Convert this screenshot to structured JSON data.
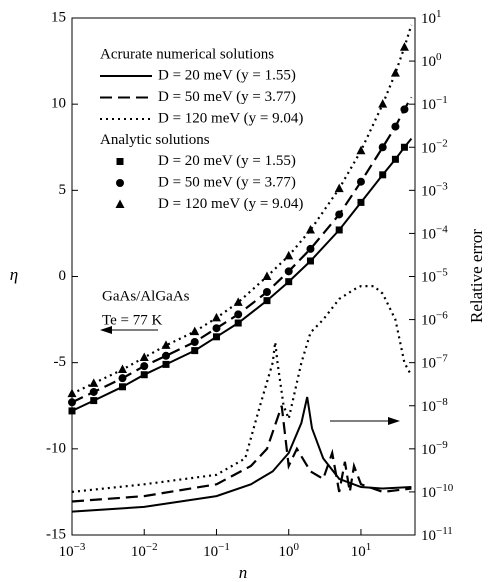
{
  "chart_data": {
    "type": "line",
    "xlabel": "n",
    "ylabel": "η",
    "y2label": "Relative error",
    "xscale": "log",
    "y2scale": "log",
    "xlim": [
      0.001,
      56
    ],
    "ylim": [
      -15,
      15
    ],
    "y2lim": [
      1e-11,
      10
    ],
    "xticks": [
      {
        "value": 0.001,
        "label": "10",
        "exponent": "−3"
      },
      {
        "value": 0.01,
        "label": "10",
        "exponent": "−2"
      },
      {
        "value": 0.1,
        "label": "10",
        "exponent": "−1"
      },
      {
        "value": 1,
        "label": "10",
        "exponent": "0"
      },
      {
        "value": 10,
        "label": "10",
        "exponent": "1"
      }
    ],
    "yticks": [
      -15,
      -10,
      -5,
      0,
      5,
      10,
      15
    ],
    "y2ticks": [
      {
        "value": 10,
        "label": "10",
        "exponent": "1"
      },
      {
        "value": 1,
        "label": "10",
        "exponent": "0"
      },
      {
        "value": 0.1,
        "label": "10",
        "exponent": "−1"
      },
      {
        "value": 0.01,
        "label": "10",
        "exponent": "−2"
      },
      {
        "value": 0.001,
        "label": "10",
        "exponent": "−3"
      },
      {
        "value": 0.0001,
        "label": "10",
        "exponent": "−4"
      },
      {
        "value": 1e-05,
        "label": "10",
        "exponent": "−5"
      },
      {
        "value": 1e-06,
        "label": "10",
        "exponent": "−6"
      },
      {
        "value": 1e-07,
        "label": "10",
        "exponent": "−7"
      },
      {
        "value": 1e-08,
        "label": "10",
        "exponent": "−8"
      },
      {
        "value": 1e-09,
        "label": "10",
        "exponent": "−9"
      },
      {
        "value": 1e-10,
        "label": "10",
        "exponent": "−10"
      },
      {
        "value": 1e-11,
        "label": "10",
        "exponent": "−11"
      }
    ],
    "legend_titles": [
      "Acrurate numerical solutions",
      "Analytic solutions"
    ],
    "annotations": [
      "GaAs/AlGaAs",
      "Te = 77 K"
    ],
    "series": [
      {
        "name": "D = 20 meV (y = 1.55)",
        "style": "solid",
        "color": "#000000",
        "x": [
          0.001,
          0.002,
          0.005,
          0.01,
          0.02,
          0.05,
          0.1,
          0.2,
          0.5,
          1,
          2,
          5,
          10,
          20,
          30,
          40,
          50
        ],
        "values": [
          -7.8,
          -7.2,
          -6.4,
          -5.7,
          -5.1,
          -4.3,
          -3.5,
          -2.7,
          -1.4,
          -0.3,
          0.9,
          2.7,
          4.3,
          5.9,
          6.8,
          7.5,
          8.0
        ]
      },
      {
        "name": "D = 50 meV (y = 3.77)",
        "style": "dashed",
        "color": "#000000",
        "x": [
          0.001,
          0.002,
          0.005,
          0.01,
          0.02,
          0.05,
          0.1,
          0.2,
          0.5,
          1,
          2,
          5,
          10,
          20,
          30,
          40,
          50
        ],
        "values": [
          -7.3,
          -6.7,
          -5.9,
          -5.2,
          -4.6,
          -3.8,
          -3.0,
          -2.2,
          -0.9,
          0.3,
          1.6,
          3.6,
          5.5,
          7.5,
          8.7,
          9.7,
          10.4
        ]
      },
      {
        "name": "D = 120 meV (y = 9.04)",
        "style": "dotted",
        "color": "#000000",
        "x": [
          0.001,
          0.002,
          0.005,
          0.01,
          0.02,
          0.05,
          0.1,
          0.2,
          0.5,
          1,
          2,
          5,
          10,
          20,
          30,
          40,
          50
        ],
        "values": [
          -6.8,
          -6.2,
          -5.4,
          -4.7,
          -4.0,
          -3.2,
          -2.4,
          -1.5,
          0.0,
          1.2,
          2.7,
          5.1,
          7.3,
          10.0,
          11.8,
          13.3,
          14.6
        ]
      },
      {
        "name": "D = 20 meV (y = 1.55)",
        "style": "square",
        "color": "#000000",
        "x": [
          0.001,
          0.002,
          0.005,
          0.01,
          0.02,
          0.05,
          0.1,
          0.2,
          0.5,
          1,
          2,
          5,
          10,
          20,
          30,
          40
        ],
        "values": [
          -7.8,
          -7.2,
          -6.4,
          -5.7,
          -5.1,
          -4.3,
          -3.5,
          -2.7,
          -1.4,
          -0.3,
          0.9,
          2.7,
          4.3,
          5.9,
          6.8,
          7.5
        ]
      },
      {
        "name": "D = 50 meV (y = 3.77)",
        "style": "circle",
        "color": "#000000",
        "x": [
          0.001,
          0.002,
          0.005,
          0.01,
          0.02,
          0.05,
          0.1,
          0.2,
          0.5,
          1,
          2,
          5,
          10,
          20,
          30,
          40
        ],
        "values": [
          -7.3,
          -6.7,
          -5.9,
          -5.2,
          -4.6,
          -3.8,
          -3.0,
          -2.2,
          -0.9,
          0.3,
          1.6,
          3.6,
          5.5,
          7.5,
          8.7,
          9.7
        ]
      },
      {
        "name": "D = 120 meV (y = 9.04)",
        "style": "triangle",
        "color": "#000000",
        "x": [
          0.001,
          0.002,
          0.005,
          0.01,
          0.02,
          0.05,
          0.1,
          0.2,
          0.5,
          1,
          2,
          5,
          10,
          20,
          30,
          40
        ],
        "values": [
          -6.8,
          -6.2,
          -5.4,
          -4.7,
          -4.0,
          -3.2,
          -2.4,
          -1.5,
          0.0,
          1.2,
          2.7,
          5.1,
          7.3,
          10.0,
          11.8,
          13.3
        ]
      },
      {
        "style": "solid",
        "axis": "y2",
        "color": "#000000",
        "x": [
          0.001,
          0.01,
          0.1,
          0.3,
          0.6,
          1,
          1.5,
          1.8,
          2.1,
          3,
          5,
          10,
          20,
          50
        ],
        "values": [
          3.5e-11,
          4.5e-11,
          8e-11,
          1.5e-10,
          3e-10,
          8e-10,
          4e-09,
          1.6e-08,
          3e-09,
          6e-10,
          2e-10,
          1.3e-10,
          1.2e-10,
          1.3e-10
        ]
      },
      {
        "style": "dashed",
        "axis": "y2",
        "color": "#000000",
        "x": [
          0.001,
          0.01,
          0.1,
          0.3,
          0.5,
          0.8,
          1,
          1.3,
          2,
          3,
          4,
          5,
          6,
          7,
          8,
          10,
          20,
          50
        ],
        "values": [
          6e-11,
          8e-11,
          1.5e-10,
          4e-10,
          1e-09,
          1e-08,
          4e-10,
          1e-09,
          3e-10,
          2e-10,
          8e-10,
          1e-10,
          5e-10,
          1e-10,
          4e-10,
          1.5e-10,
          1e-10,
          1.2e-10
        ]
      },
      {
        "style": "dotted",
        "axis": "y2",
        "color": "#000000",
        "x": [
          0.001,
          0.01,
          0.1,
          0.25,
          0.4,
          0.6,
          0.65,
          0.7,
          0.85,
          1,
          1.5,
          2,
          3,
          5,
          8,
          10,
          15,
          20,
          30,
          40,
          50
        ],
        "values": [
          1e-10,
          1.5e-10,
          2.5e-10,
          6e-10,
          1e-08,
          1e-07,
          3e-07,
          1e-07,
          1e-08,
          5e-09,
          1e-07,
          5e-07,
          1e-06,
          3e-06,
          5e-06,
          6e-06,
          6e-06,
          4e-06,
          1e-06,
          1e-07,
          5e-08
        ]
      }
    ]
  }
}
